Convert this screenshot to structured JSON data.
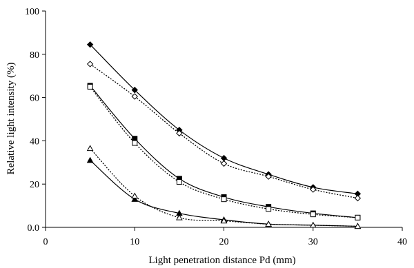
{
  "chart_data": {
    "type": "line",
    "xlabel": "Light penetration distance Pd (mm)",
    "ylabel": "Relative light intensity (%)",
    "xlim": [
      0,
      40
    ],
    "ylim": [
      0,
      100
    ],
    "x_ticks": [
      "0",
      "10",
      "20",
      "30",
      "40"
    ],
    "y_ticks": [
      "0.0",
      "20",
      "40",
      "60",
      "80",
      "100"
    ],
    "grid": false,
    "legend": "none",
    "x": [
      5,
      10,
      15,
      20,
      25,
      30,
      35
    ],
    "series": [
      {
        "marker": "filled-diamond",
        "line": "solid",
        "color": "#000000",
        "values": [
          84.5,
          63.5,
          45,
          32,
          24.5,
          18.5,
          15.5
        ]
      },
      {
        "marker": "open-diamond",
        "line": "dotted",
        "color": "#000000",
        "values": [
          75.5,
          60.5,
          43.5,
          29.5,
          23.5,
          17.5,
          13.5
        ]
      },
      {
        "marker": "filled-square",
        "line": "solid",
        "color": "#000000",
        "values": [
          65.5,
          41,
          22.5,
          14,
          9.5,
          6.5,
          4.5
        ]
      },
      {
        "marker": "open-square",
        "line": "dotted",
        "color": "#000000",
        "values": [
          65,
          39,
          21,
          13,
          8.5,
          6,
          4.5
        ]
      },
      {
        "marker": "filled-triangle",
        "line": "solid",
        "color": "#000000",
        "values": [
          31,
          13,
          6.5,
          3.5,
          1.5,
          1,
          0.5
        ]
      },
      {
        "marker": "open-triangle",
        "line": "dotted",
        "color": "#000000",
        "values": [
          36.5,
          14.5,
          4.5,
          3,
          1.5,
          1,
          0.5
        ]
      }
    ]
  }
}
